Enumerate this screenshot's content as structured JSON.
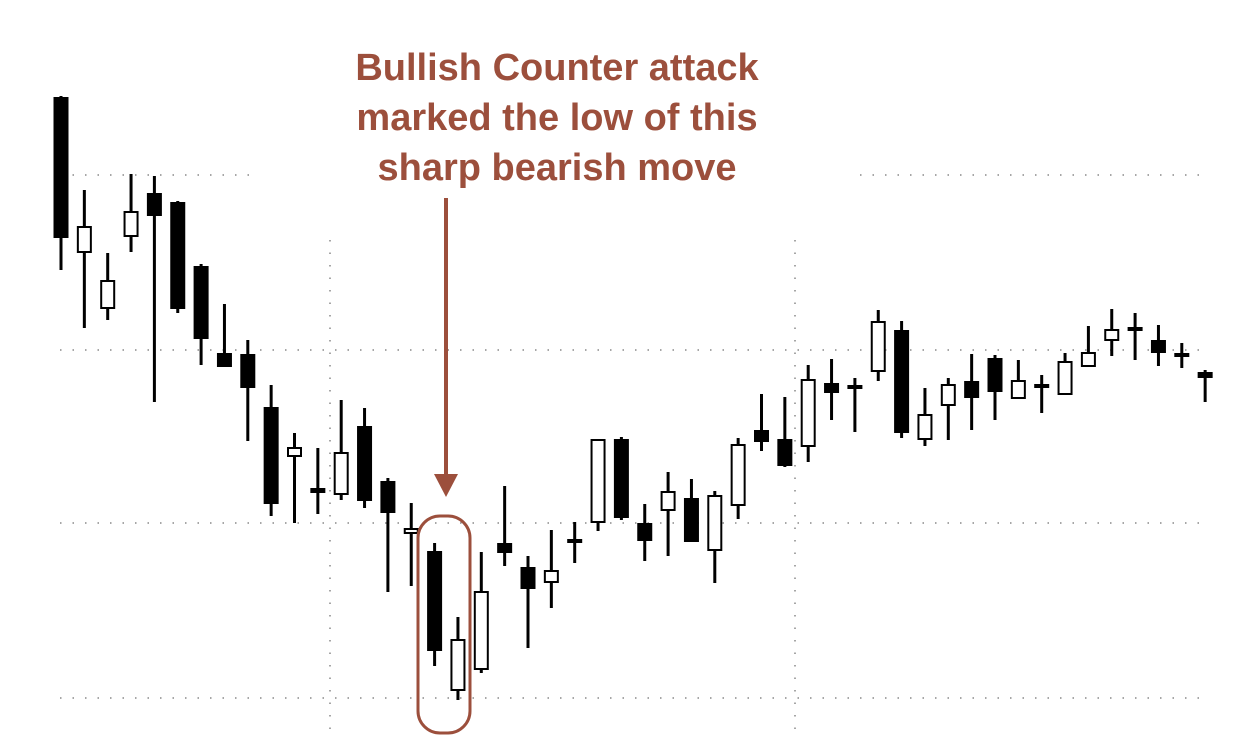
{
  "chart_data": {
    "type": "candlestick",
    "annotation": [
      "Bullish Counter attack",
      "marked the low of this",
      "sharp bearish move"
    ],
    "categories": [
      null,
      null,
      null,
      null,
      null,
      null,
      null,
      null,
      null,
      null,
      null,
      null,
      null,
      null,
      null,
      null,
      null,
      null,
      null,
      null,
      null,
      null,
      null,
      null,
      null,
      null,
      null,
      null,
      null,
      null,
      null,
      null,
      null,
      null,
      null,
      null,
      null,
      null,
      null,
      null,
      null,
      null,
      null,
      null,
      null,
      null,
      null,
      null,
      null,
      null
    ],
    "series": [
      {
        "name": "open",
        "values": [
          642,
          488,
          432,
          504,
          546,
          537,
          473,
          386,
          385,
          332,
          284,
          251,
          246,
          313,
          258,
          207,
          188,
          50,
          71,
          196,
          172,
          158,
          200,
          218,
          300,
          216,
          230,
          241,
          190,
          235,
          309,
          300,
          294,
          356,
          354,
          369,
          409,
          301,
          335,
          358,
          381,
          342,
          355,
          346,
          374,
          400,
          412,
          399,
          386,
          367
        ]
      },
      {
        "name": "high",
        "values": [
          644,
          550,
          487,
          566,
          564,
          539,
          476,
          436,
          400,
          355,
          307,
          292,
          340,
          332,
          262,
          237,
          197,
          123,
          188,
          254,
          184,
          210,
          218,
          300,
          303,
          236,
          268,
          261,
          249,
          302,
          346,
          343,
          375,
          381,
          362,
          430,
          419,
          352,
          362,
          386,
          385,
          380,
          365,
          387,
          414,
          431,
          427,
          415,
          397,
          370
        ]
      },
      {
        "name": "low",
        "values": [
          470,
          412,
          420,
          488,
          338,
          427,
          375,
          374,
          299,
          224,
          217,
          226,
          240,
          232,
          148,
          154,
          74,
          40,
          67,
          174,
          92,
          132,
          177,
          209,
          220,
          179,
          184,
          199,
          157,
          221,
          289,
          273,
          278,
          320,
          308,
          359,
          302,
          294,
          300,
          310,
          320,
          341,
          327,
          346,
          374,
          384,
          380,
          374,
          372,
          338
        ]
      },
      {
        "name": "close",
        "values": [
          503,
          513,
          459,
          528,
          525,
          432,
          402,
          374,
          353,
          237,
          292,
          248,
          287,
          240,
          228,
          211,
          90,
          100,
          148,
          188,
          152,
          169,
          198,
          300,
          223,
          200,
          248,
          199,
          244,
          295,
          299,
          275,
          360,
          348,
          353,
          418,
          308,
          325,
          355,
          343,
          349,
          359,
          354,
          378,
          387,
          410,
          410,
          388,
          384,
          363
        ]
      }
    ],
    "up_color": "#ffffff",
    "down_color": "#000000",
    "ylim": [
      0,
      700
    ],
    "yticks": [
      42,
      217,
      390,
      565
    ],
    "grid": true
  }
}
